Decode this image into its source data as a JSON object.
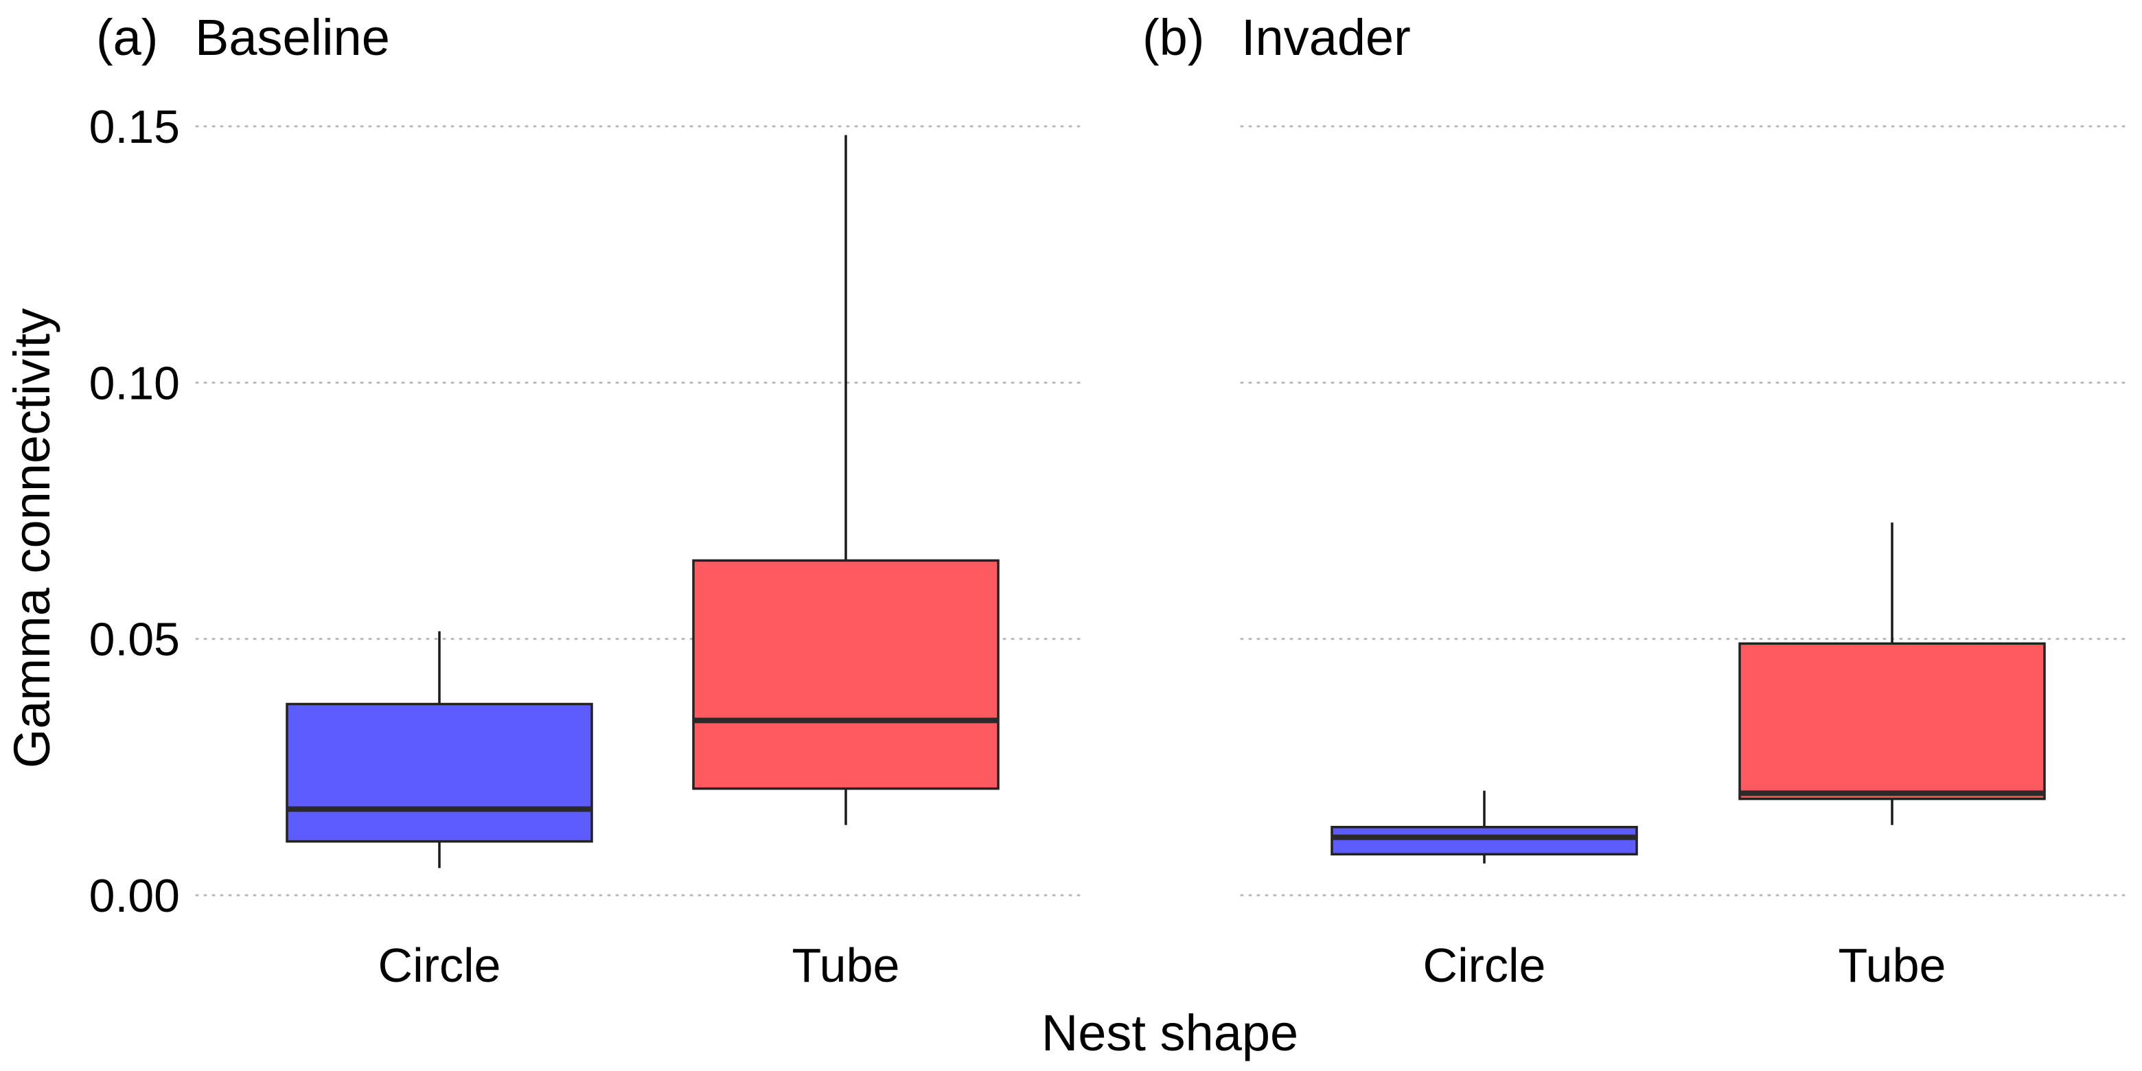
{
  "chart_data": {
    "type": "boxplot",
    "ylabel": "Gamma connectivity",
    "xlabel": "Nest shape",
    "ylim": [
      0,
      0.15
    ],
    "y_ticks": [
      "0.00",
      "0.05",
      "0.10",
      "0.15"
    ],
    "y_tick_values": [
      0,
      0.05,
      0.1,
      0.15
    ],
    "grid": "horizontal dotted",
    "colors": {
      "Circle": "#5c5cff",
      "Tube": "#ff5a5f"
    },
    "panels": [
      {
        "tag": "(a)",
        "title": "Baseline",
        "categories": [
          "Circle",
          "Tube"
        ],
        "boxes": [
          {
            "category": "Circle",
            "whisker_low": 0.0053,
            "q1": 0.0105,
            "median": 0.0168,
            "q3": 0.0373,
            "whisker_high": 0.0515
          },
          {
            "category": "Tube",
            "whisker_low": 0.0137,
            "q1": 0.0208,
            "median": 0.0341,
            "q3": 0.0653,
            "whisker_high": 0.1483
          }
        ]
      },
      {
        "tag": "(b)",
        "title": "Invader",
        "categories": [
          "Circle",
          "Tube"
        ],
        "boxes": [
          {
            "category": "Circle",
            "whisker_low": 0.0062,
            "q1": 0.008,
            "median": 0.0113,
            "q3": 0.0133,
            "whisker_high": 0.0204
          },
          {
            "category": "Tube",
            "whisker_low": 0.0137,
            "q1": 0.0188,
            "median": 0.0199,
            "q3": 0.0491,
            "whisker_high": 0.0727
          }
        ]
      }
    ]
  }
}
